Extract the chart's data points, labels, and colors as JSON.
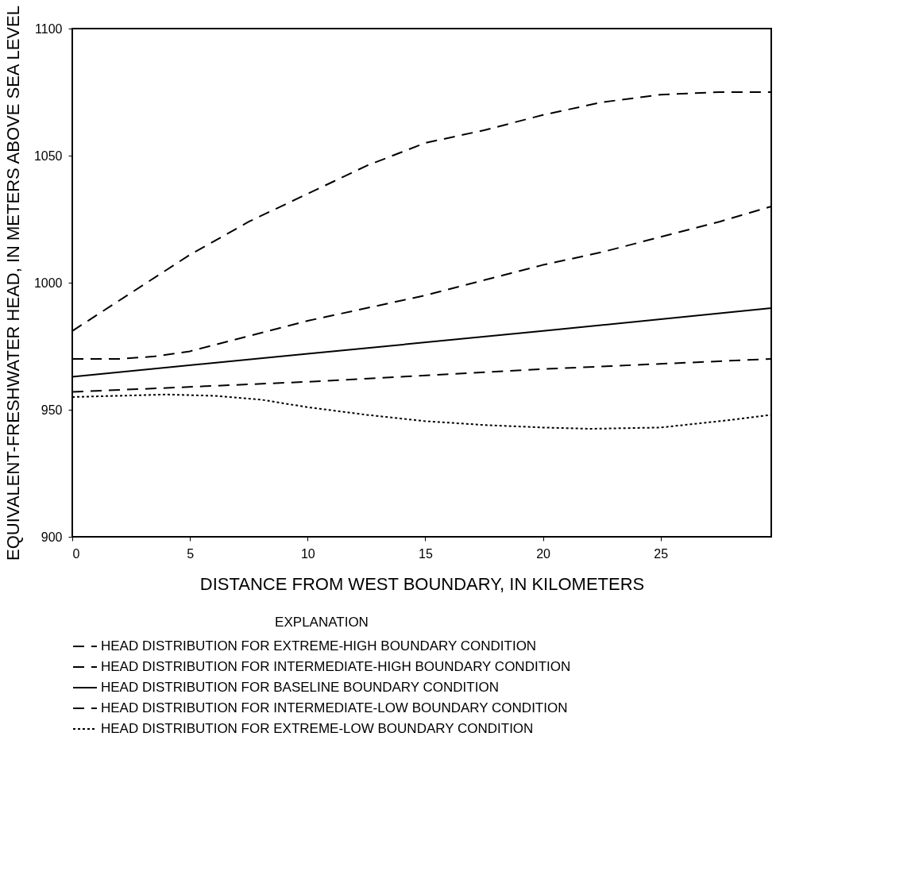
{
  "chart_data": {
    "type": "line",
    "xlabel": "DISTANCE FROM WEST BOUNDARY, IN KILOMETERS",
    "ylabel": "EQUIVALENT-FRESHWATER HEAD, IN METERS ABOVE SEA LEVEL",
    "legend_title": "EXPLANATION",
    "legend": "bottom",
    "grid": false,
    "marker": "none",
    "xlim": [
      0,
      29.7
    ],
    "xticks": [
      0,
      5,
      10,
      15,
      20,
      25
    ],
    "ylim": [
      900,
      1100
    ],
    "yticks": [
      900,
      950,
      1000,
      1050,
      1100
    ],
    "series": [
      {
        "name": "HEAD DISTRIBUTION FOR EXTREME-HIGH BOUNDARY CONDITION",
        "color": "#000000",
        "line_style": "dashed",
        "x": [
          0,
          2.5,
          5,
          7.5,
          10,
          12.5,
          15,
          17.5,
          20,
          22.5,
          25,
          27.5,
          29.7
        ],
        "values": [
          981,
          996,
          1011,
          1024,
          1035,
          1046,
          1055,
          1060,
          1066,
          1071,
          1074,
          1075,
          1075
        ]
      },
      {
        "name": "HEAD DISTRIBUTION FOR INTERMEDIATE-HIGH BOUNDARY CONDITION",
        "color": "#000000",
        "line_style": "dashed",
        "x": [
          0,
          2,
          3.5,
          5,
          7.5,
          10,
          12.5,
          15,
          17.5,
          20,
          22.5,
          25,
          27.5,
          29.7
        ],
        "values": [
          970,
          970,
          971,
          973,
          979,
          985,
          990,
          995,
          1001,
          1007,
          1012,
          1018,
          1024,
          1030
        ]
      },
      {
        "name": "HEAD DISTRIBUTION FOR BASELINE BOUNDARY CONDITION",
        "color": "#000000",
        "line_style": "solid",
        "x": [
          0,
          10,
          20,
          29.7
        ],
        "values": [
          963,
          972,
          981,
          990
        ]
      },
      {
        "name": "HEAD DISTRIBUTION FOR INTERMEDIATE-LOW BOUNDARY CONDITION",
        "color": "#000000",
        "line_style": "dashed",
        "x": [
          0,
          10,
          20,
          29.7
        ],
        "values": [
          957,
          961,
          966,
          970
        ]
      },
      {
        "name": "HEAD DISTRIBUTION FOR EXTREME-LOW BOUNDARY CONDITION",
        "color": "#000000",
        "line_style": "dotted",
        "x": [
          0,
          2,
          4,
          6,
          8,
          10,
          12.5,
          15,
          17.5,
          20,
          22,
          25,
          28,
          29.7
        ],
        "values": [
          955,
          955.5,
          956,
          955.5,
          954,
          951,
          948,
          945.5,
          944,
          943,
          942.5,
          943,
          946,
          948
        ]
      }
    ]
  }
}
